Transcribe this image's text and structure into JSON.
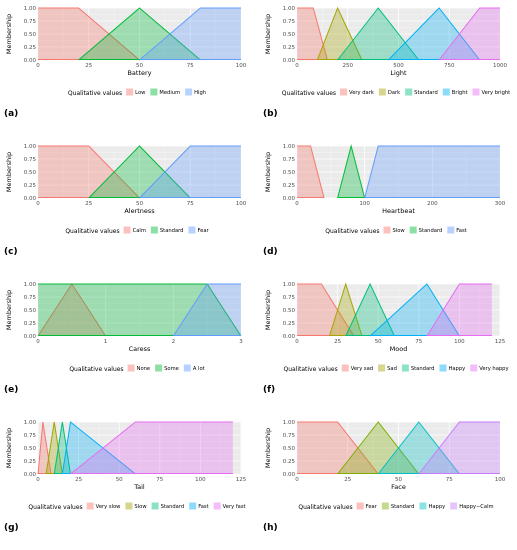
{
  "chart_data": [
    {
      "type": "area",
      "panel_label": "(a)",
      "xlabel": "Battery",
      "ylabel": "Membership",
      "xlim": [
        0,
        100
      ],
      "ylim": [
        0,
        1
      ],
      "xticks": [
        "0",
        "25",
        "50",
        "75",
        "100"
      ],
      "yticks": [
        "0.00",
        "0.25",
        "0.50",
        "0.75",
        "1.00"
      ],
      "legend_title": "Qualitative values",
      "series": [
        {
          "name": "Low",
          "color": "#F8766D",
          "points": [
            [
              0,
              1
            ],
            [
              20,
              1
            ],
            [
              50,
              0
            ]
          ]
        },
        {
          "name": "Medium",
          "color": "#00BA38",
          "points": [
            [
              20,
              0
            ],
            [
              50,
              1
            ],
            [
              80,
              0
            ]
          ]
        },
        {
          "name": "High",
          "color": "#619CFF",
          "points": [
            [
              50,
              0
            ],
            [
              80,
              1
            ],
            [
              100,
              1
            ]
          ]
        }
      ]
    },
    {
      "type": "area",
      "panel_label": "(b)",
      "xlabel": "Light",
      "ylabel": "Membership",
      "xlim": [
        0,
        1000
      ],
      "ylim": [
        0,
        1
      ],
      "xticks": [
        "0",
        "250",
        "500",
        "750",
        "1000"
      ],
      "yticks": [
        "0.00",
        "0.25",
        "0.50",
        "0.75",
        "1.00"
      ],
      "legend_title": "Qualitative values",
      "series": [
        {
          "name": "Very dark",
          "color": "#F8766D",
          "points": [
            [
              0,
              1
            ],
            [
              80,
              1
            ],
            [
              150,
              0
            ]
          ]
        },
        {
          "name": "Dark",
          "color": "#A3A500",
          "points": [
            [
              100,
              0
            ],
            [
              200,
              1
            ],
            [
              320,
              0
            ]
          ]
        },
        {
          "name": "Standard",
          "color": "#00BF7D",
          "points": [
            [
              200,
              0
            ],
            [
              400,
              1
            ],
            [
              600,
              0
            ]
          ]
        },
        {
          "name": "Bright",
          "color": "#00B0F6",
          "points": [
            [
              450,
              0
            ],
            [
              700,
              1
            ],
            [
              900,
              0
            ]
          ]
        },
        {
          "name": "Very bright",
          "color": "#E76BF3",
          "points": [
            [
              700,
              0
            ],
            [
              900,
              1
            ],
            [
              1000,
              1
            ]
          ]
        }
      ]
    },
    {
      "type": "area",
      "panel_label": "(c)",
      "xlabel": "Alertness",
      "ylabel": "Membership",
      "xlim": [
        0,
        100
      ],
      "ylim": [
        0,
        1
      ],
      "xticks": [
        "0",
        "25",
        "50",
        "75",
        "100"
      ],
      "yticks": [
        "0.00",
        "0.25",
        "0.50",
        "0.75",
        "1.00"
      ],
      "legend_title": "Qualitative values",
      "series": [
        {
          "name": "Calm",
          "color": "#F8766D",
          "points": [
            [
              0,
              1
            ],
            [
              25,
              1
            ],
            [
              50,
              0
            ]
          ]
        },
        {
          "name": "Standard",
          "color": "#00BA38",
          "points": [
            [
              25,
              0
            ],
            [
              50,
              1
            ],
            [
              75,
              0
            ]
          ]
        },
        {
          "name": "Fear",
          "color": "#619CFF",
          "points": [
            [
              50,
              0
            ],
            [
              75,
              1
            ],
            [
              100,
              1
            ]
          ]
        }
      ]
    },
    {
      "type": "area",
      "panel_label": "(d)",
      "xlabel": "Heartbeat",
      "ylabel": "Membership",
      "xlim": [
        0,
        300
      ],
      "ylim": [
        0,
        1
      ],
      "xticks": [
        "0",
        "100",
        "200",
        "300"
      ],
      "yticks": [
        "0.00",
        "0.25",
        "0.50",
        "0.75",
        "1.00"
      ],
      "legend_title": "Qualitative values",
      "series": [
        {
          "name": "Slow",
          "color": "#F8766D",
          "points": [
            [
              0,
              1
            ],
            [
              20,
              1
            ],
            [
              40,
              0
            ]
          ]
        },
        {
          "name": "Standard",
          "color": "#00BA38",
          "points": [
            [
              60,
              0
            ],
            [
              80,
              1
            ],
            [
              100,
              0
            ]
          ]
        },
        {
          "name": "Fast",
          "color": "#619CFF",
          "points": [
            [
              100,
              0
            ],
            [
              120,
              1
            ],
            [
              300,
              1
            ]
          ]
        }
      ]
    },
    {
      "type": "area",
      "panel_label": "(e)",
      "xlabel": "Caress",
      "ylabel": "Membership",
      "xlim": [
        0,
        3
      ],
      "ylim": [
        0,
        1
      ],
      "xticks": [
        "0",
        "1",
        "2",
        "3"
      ],
      "yticks": [
        "0.00",
        "0.25",
        "0.50",
        "0.75",
        "1.00"
      ],
      "legend_title": "Qualitative values",
      "series": [
        {
          "name": "None",
          "color": "#F8766D",
          "points": [
            [
              0,
              0
            ],
            [
              0.5,
              1
            ],
            [
              1,
              0
            ]
          ]
        },
        {
          "name": "Some",
          "color": "#00BA38",
          "points": [
            [
              0,
              1
            ],
            [
              2.5,
              1
            ],
            [
              3,
              0
            ]
          ]
        },
        {
          "name": "A lot",
          "color": "#619CFF",
          "points": [
            [
              2,
              0
            ],
            [
              2.5,
              1
            ],
            [
              3,
              1
            ]
          ]
        }
      ]
    },
    {
      "type": "area",
      "panel_label": "(f)",
      "xlabel": "Mood",
      "ylabel": "Membership",
      "xlim": [
        0,
        125
      ],
      "ylim": [
        0,
        1
      ],
      "xticks": [
        "0",
        "25",
        "50",
        "75",
        "100",
        "125"
      ],
      "yticks": [
        "0.00",
        "0.25",
        "0.50",
        "0.75",
        "1.00"
      ],
      "legend_title": "Qualitative values",
      "series": [
        {
          "name": "Very sad",
          "color": "#F8766D",
          "points": [
            [
              0,
              1
            ],
            [
              15,
              1
            ],
            [
              35,
              0
            ]
          ]
        },
        {
          "name": "Sad",
          "color": "#A3A500",
          "points": [
            [
              20,
              0
            ],
            [
              30,
              1
            ],
            [
              40,
              0
            ]
          ]
        },
        {
          "name": "Standard",
          "color": "#00BF7D",
          "points": [
            [
              30,
              0
            ],
            [
              45,
              1
            ],
            [
              60,
              0
            ]
          ]
        },
        {
          "name": "Happy",
          "color": "#00B0F6",
          "points": [
            [
              45,
              0
            ],
            [
              80,
              1
            ],
            [
              100,
              0
            ]
          ]
        },
        {
          "name": "Very happy",
          "color": "#E76BF3",
          "points": [
            [
              80,
              0
            ],
            [
              100,
              1
            ],
            [
              120,
              1
            ]
          ]
        }
      ]
    },
    {
      "type": "area",
      "panel_label": "(g)",
      "xlabel": "Tail",
      "ylabel": "Membership",
      "xlim": [
        0,
        125
      ],
      "ylim": [
        0,
        1
      ],
      "xticks": [
        "0",
        "25",
        "50",
        "75",
        "100",
        "125"
      ],
      "yticks": [
        "0.00",
        "0.25",
        "0.50",
        "0.75",
        "1.00"
      ],
      "legend_title": "Qualitative values",
      "series": [
        {
          "name": "Very slow",
          "color": "#F8766D",
          "points": [
            [
              0,
              0
            ],
            [
              3,
              1
            ],
            [
              8,
              0
            ]
          ]
        },
        {
          "name": "Slow",
          "color": "#A3A500",
          "points": [
            [
              5,
              0
            ],
            [
              10,
              1
            ],
            [
              15,
              0
            ]
          ]
        },
        {
          "name": "Standard",
          "color": "#00BF7D",
          "points": [
            [
              10,
              0
            ],
            [
              15,
              1
            ],
            [
              20,
              0
            ]
          ]
        },
        {
          "name": "Fast",
          "color": "#00B0F6",
          "points": [
            [
              15,
              0
            ],
            [
              20,
              1
            ],
            [
              60,
              0
            ]
          ]
        },
        {
          "name": "Very fast",
          "color": "#E76BF3",
          "points": [
            [
              20,
              0
            ],
            [
              60,
              1
            ],
            [
              120,
              1
            ]
          ]
        }
      ]
    },
    {
      "type": "area",
      "panel_label": "(h)",
      "xlabel": "Face",
      "ylabel": "Membership",
      "xlim": [
        0,
        100
      ],
      "ylim": [
        0,
        1
      ],
      "xticks": [
        "0",
        "25",
        "50",
        "75",
        "100"
      ],
      "yticks": [
        "0.00",
        "0.25",
        "0.50",
        "0.75",
        "1.00"
      ],
      "legend_title": "Qualitative values",
      "series": [
        {
          "name": "Fear",
          "color": "#F8766D",
          "points": [
            [
              0,
              1
            ],
            [
              20,
              1
            ],
            [
              40,
              0
            ]
          ]
        },
        {
          "name": "Standard",
          "color": "#7CAE00",
          "points": [
            [
              20,
              0
            ],
            [
              40,
              1
            ],
            [
              60,
              0
            ]
          ]
        },
        {
          "name": "Happy",
          "color": "#00BFC4",
          "points": [
            [
              40,
              0
            ],
            [
              60,
              1
            ],
            [
              80,
              0
            ]
          ]
        },
        {
          "name": "Happy−Calm",
          "color": "#C77CFF",
          "points": [
            [
              60,
              0
            ],
            [
              80,
              1
            ],
            [
              100,
              1
            ]
          ]
        }
      ]
    }
  ]
}
